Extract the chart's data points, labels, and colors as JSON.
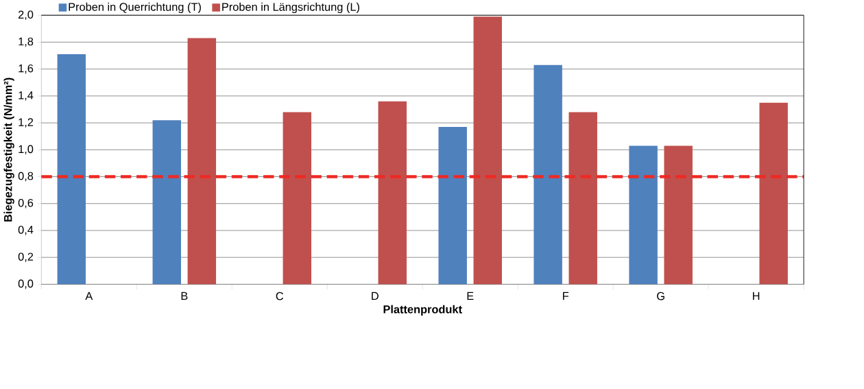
{
  "chart_data": {
    "type": "bar",
    "xlabel": "Plattenprodukt",
    "ylabel": "Biegezugfestigkeit (N/mm²)",
    "categories": [
      "A",
      "B",
      "C",
      "D",
      "E",
      "F",
      "G",
      "H"
    ],
    "series": [
      {
        "name": "Proben in Querrichtung (T)",
        "color": "#4f81bd",
        "values": [
          1.71,
          1.22,
          null,
          null,
          1.17,
          1.63,
          1.03,
          null
        ]
      },
      {
        "name": "Proben in Längsrichtung (L)",
        "color": "#c0504d",
        "values": [
          null,
          1.83,
          1.28,
          1.36,
          1.99,
          1.28,
          1.03,
          1.35
        ]
      }
    ],
    "ylim": [
      0,
      2
    ],
    "yticks": [
      {
        "value": 0,
        "label": "0,0"
      },
      {
        "value": 0.2,
        "label": "0,2"
      },
      {
        "value": 0.4,
        "label": "0,4"
      },
      {
        "value": 0.6,
        "label": "0,6"
      },
      {
        "value": 0.8,
        "label": "0,8"
      },
      {
        "value": 1.0,
        "label": "1,0"
      },
      {
        "value": 1.2,
        "label": "1,2"
      },
      {
        "value": 1.4,
        "label": "1,4"
      },
      {
        "value": 1.6,
        "label": "1,6"
      },
      {
        "value": 1.8,
        "label": "1,8"
      },
      {
        "value": 2.0,
        "label": "2,0"
      }
    ],
    "ref_lines": [
      {
        "axis": "y",
        "value": 0.8,
        "color": "#ee2a24",
        "line_style": "dashed"
      }
    ],
    "grid": "y",
    "legend": "top"
  }
}
